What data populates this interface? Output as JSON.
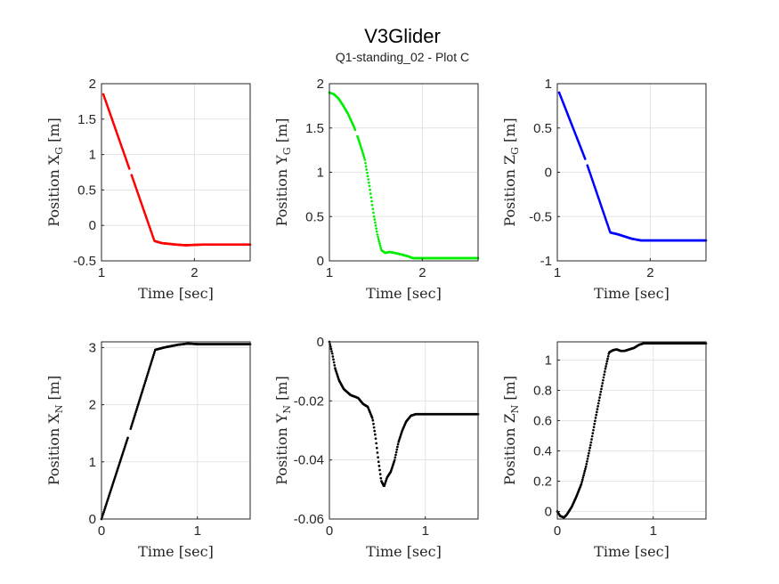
{
  "figure": {
    "title": "V3Glider",
    "subtitle": "Q1-standing_02 - Plot C"
  },
  "chart_data": [
    {
      "type": "scatter",
      "xlabel": "Time [sec]",
      "ylabel": "Position X_G [m]",
      "ylabel_main": "Position X",
      "ylabel_sub": "G",
      "ylabel_unit": "[m]",
      "color": "#ff0000",
      "xlim": [
        1,
        2.6
      ],
      "ylim": [
        -0.5,
        2
      ],
      "xticks": [
        1,
        2
      ],
      "yticks": [
        -0.5,
        0,
        0.5,
        1,
        1.5,
        2
      ],
      "grid": true,
      "series": [
        {
          "points": [
            [
              1.02,
              1.85
            ],
            [
              1.3,
              0.8
            ],
            [
              1.57,
              -0.22
            ],
            [
              1.65,
              -0.25
            ],
            [
              1.8,
              -0.27
            ],
            [
              1.9,
              -0.28
            ],
            [
              2.1,
              -0.27
            ],
            [
              2.6,
              -0.27
            ]
          ],
          "gaps": [
            [
              1.3,
              1.32
            ]
          ]
        }
      ]
    },
    {
      "type": "scatter",
      "xlabel": "Time [sec]",
      "ylabel": "Position Y_G [m]",
      "ylabel_main": "Position Y",
      "ylabel_sub": "G",
      "ylabel_unit": "[m]",
      "color": "#00ee00",
      "xlim": [
        1,
        2.6
      ],
      "ylim": [
        0,
        2
      ],
      "xticks": [
        1,
        2
      ],
      "yticks": [
        0,
        0.5,
        1,
        1.5,
        2
      ],
      "grid": true,
      "series": [
        {
          "points": [
            [
              1.0,
              1.9
            ],
            [
              1.05,
              1.88
            ],
            [
              1.1,
              1.83
            ],
            [
              1.15,
              1.75
            ],
            [
              1.2,
              1.66
            ],
            [
              1.27,
              1.5
            ],
            [
              1.32,
              1.35
            ],
            [
              1.38,
              1.15
            ],
            [
              1.43,
              0.85
            ],
            [
              1.48,
              0.5
            ],
            [
              1.52,
              0.28
            ],
            [
              1.56,
              0.12
            ],
            [
              1.6,
              0.09
            ],
            [
              1.65,
              0.1
            ],
            [
              1.7,
              0.09
            ],
            [
              1.78,
              0.07
            ],
            [
              1.85,
              0.05
            ],
            [
              1.9,
              0.03
            ],
            [
              2.0,
              0.03
            ],
            [
              2.6,
              0.03
            ]
          ],
          "gaps": [
            [
              1.28,
              1.3
            ]
          ]
        }
      ]
    },
    {
      "type": "scatter",
      "xlabel": "Time [sec]",
      "ylabel": "Position Z_G [m]",
      "ylabel_main": "Position Z",
      "ylabel_sub": "G",
      "ylabel_unit": "[m]",
      "color": "#0000ff",
      "xlim": [
        1,
        2.6
      ],
      "ylim": [
        -1,
        1
      ],
      "xticks": [
        1,
        2
      ],
      "yticks": [
        -1,
        -0.5,
        0,
        0.5,
        1
      ],
      "grid": true,
      "series": [
        {
          "points": [
            [
              1.02,
              0.9
            ],
            [
              1.3,
              0.15
            ],
            [
              1.57,
              -0.68
            ],
            [
              1.65,
              -0.7
            ],
            [
              1.8,
              -0.75
            ],
            [
              1.9,
              -0.77
            ],
            [
              2.1,
              -0.77
            ],
            [
              2.6,
              -0.77
            ]
          ],
          "gaps": [
            [
              1.3,
              1.32
            ]
          ]
        }
      ]
    },
    {
      "type": "scatter",
      "xlabel": "Time [sec]",
      "ylabel": "Position X_N [m]",
      "ylabel_main": "Position X",
      "ylabel_sub": "N",
      "ylabel_unit": "[m]",
      "color": "#000000",
      "xlim": [
        0,
        1.55
      ],
      "ylim": [
        0,
        3.1
      ],
      "xticks": [
        0,
        1
      ],
      "yticks": [
        0,
        1,
        2,
        3
      ],
      "grid": true,
      "series": [
        {
          "points": [
            [
              0.0,
              0.0
            ],
            [
              0.28,
              1.45
            ],
            [
              0.56,
              2.96
            ],
            [
              0.65,
              3.0
            ],
            [
              0.8,
              3.05
            ],
            [
              0.9,
              3.07
            ],
            [
              1.0,
              3.06
            ],
            [
              1.55,
              3.06
            ]
          ],
          "gaps": [
            [
              0.28,
              0.3
            ]
          ]
        }
      ]
    },
    {
      "type": "scatter",
      "xlabel": "Time [sec]",
      "ylabel": "Position Y_N [m]",
      "ylabel_main": "Position Y",
      "ylabel_sub": "N",
      "ylabel_unit": "[m]",
      "color": "#000000",
      "xlim": [
        0,
        1.55
      ],
      "ylim": [
        -0.06,
        0
      ],
      "xticks": [
        0,
        1
      ],
      "yticks": [
        -0.06,
        -0.04,
        -0.02,
        0
      ],
      "grid": true,
      "series": [
        {
          "points": [
            [
              0.0,
              0.0
            ],
            [
              0.03,
              -0.004
            ],
            [
              0.06,
              -0.009
            ],
            [
              0.1,
              -0.013
            ],
            [
              0.15,
              -0.016
            ],
            [
              0.22,
              -0.018
            ],
            [
              0.3,
              -0.019
            ],
            [
              0.35,
              -0.021
            ],
            [
              0.4,
              -0.022
            ],
            [
              0.45,
              -0.026
            ],
            [
              0.48,
              -0.032
            ],
            [
              0.51,
              -0.04
            ],
            [
              0.54,
              -0.047
            ],
            [
              0.57,
              -0.049
            ],
            [
              0.6,
              -0.046
            ],
            [
              0.64,
              -0.044
            ],
            [
              0.68,
              -0.04
            ],
            [
              0.72,
              -0.034
            ],
            [
              0.76,
              -0.03
            ],
            [
              0.8,
              -0.027
            ],
            [
              0.85,
              -0.025
            ],
            [
              0.9,
              -0.0245
            ],
            [
              1.0,
              -0.0245
            ],
            [
              1.55,
              -0.0245
            ]
          ],
          "gaps": []
        }
      ]
    },
    {
      "type": "scatter",
      "xlabel": "Time [sec]",
      "ylabel": "Position Z_N [m]",
      "ylabel_main": "Position Z",
      "ylabel_sub": "N",
      "ylabel_unit": "[m]",
      "color": "#000000",
      "xlim": [
        0,
        1.55
      ],
      "ylim": [
        -0.05,
        1.12
      ],
      "xticks": [
        0,
        1
      ],
      "yticks": [
        0,
        0.2,
        0.4,
        0.6,
        0.8,
        1
      ],
      "grid": true,
      "series": [
        {
          "points": [
            [
              0.0,
              0.0
            ],
            [
              0.03,
              -0.03
            ],
            [
              0.07,
              -0.04
            ],
            [
              0.1,
              -0.02
            ],
            [
              0.15,
              0.03
            ],
            [
              0.2,
              0.1
            ],
            [
              0.25,
              0.18
            ],
            [
              0.3,
              0.3
            ],
            [
              0.35,
              0.45
            ],
            [
              0.4,
              0.62
            ],
            [
              0.45,
              0.78
            ],
            [
              0.5,
              0.94
            ],
            [
              0.54,
              1.05
            ],
            [
              0.58,
              1.065
            ],
            [
              0.62,
              1.07
            ],
            [
              0.66,
              1.06
            ],
            [
              0.7,
              1.06
            ],
            [
              0.75,
              1.07
            ],
            [
              0.8,
              1.08
            ],
            [
              0.85,
              1.1
            ],
            [
              0.9,
              1.11
            ],
            [
              1.0,
              1.11
            ],
            [
              1.55,
              1.11
            ]
          ],
          "gaps": []
        }
      ]
    }
  ]
}
